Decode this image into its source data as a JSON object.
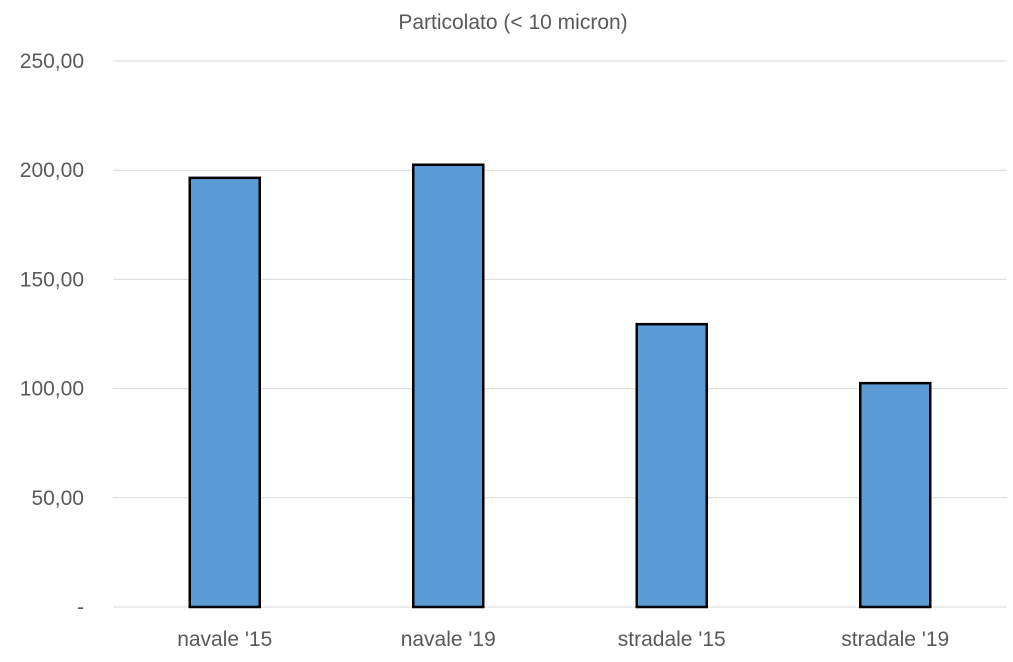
{
  "chart_data": {
    "type": "bar",
    "title": "Particolato (< 10 micron)",
    "xlabel": "",
    "ylabel": "",
    "categories": [
      "navale '15",
      "navale '19",
      "stradale '15",
      "stradale '19"
    ],
    "values": [
      196.5,
      202.5,
      129.5,
      102.5
    ],
    "ylim": [
      0,
      250
    ],
    "yticks": [
      0,
      50,
      100,
      150,
      200,
      250
    ],
    "ytick_labels": [
      "-",
      "50,00",
      "100,00",
      "150,00",
      "200,00",
      "250,00"
    ],
    "grid": true,
    "legend": "none",
    "colors": {
      "bar_fill": "#5B9BD5",
      "bar_stroke": "#000000",
      "grid": "#D9D9D9",
      "text": "#595959"
    }
  }
}
